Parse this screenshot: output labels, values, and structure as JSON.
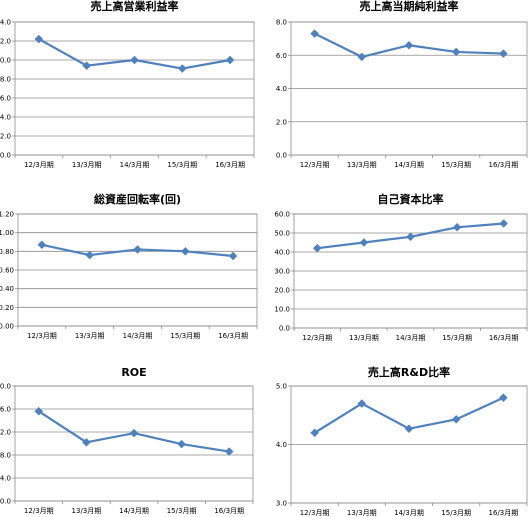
{
  "chart_data": [
    {
      "type": "line",
      "title": "売上高営業利益率",
      "categories": [
        "12/3月期",
        "13/3月期",
        "14/3月期",
        "15/3月期",
        "16/3月期"
      ],
      "series": [
        {
          "values": [
            12.2,
            9.4,
            10.0,
            9.1,
            10.0
          ]
        }
      ],
      "ylim": [
        0,
        14
      ],
      "yticks": [
        0,
        2,
        4,
        6,
        8,
        10,
        12,
        14
      ],
      "ytick_labels": [
        "0.0",
        "2.0",
        "4.0",
        "6.0",
        "8.0",
        "10.0",
        "12.0",
        "14.0"
      ],
      "grid": true,
      "color": "#4f81bd"
    },
    {
      "type": "line",
      "title": "売上高当期純利益率",
      "categories": [
        "12/3月期",
        "13/3月期",
        "14/3月期",
        "15/3月期",
        "16/3月期"
      ],
      "series": [
        {
          "values": [
            7.3,
            5.9,
            6.6,
            6.2,
            6.1
          ]
        }
      ],
      "ylim": [
        0,
        8
      ],
      "yticks": [
        0,
        2,
        4,
        6,
        8
      ],
      "ytick_labels": [
        "0.0",
        "2.0",
        "4.0",
        "6.0",
        "8.0"
      ],
      "grid": true,
      "color": "#4f81bd"
    },
    {
      "type": "line",
      "title": "総資産回転率(回)",
      "categories": [
        "12/3月期",
        "13/3月期",
        "14/3月期",
        "15/3月期",
        "16/3月期"
      ],
      "series": [
        {
          "values": [
            0.87,
            0.76,
            0.82,
            0.8,
            0.75
          ]
        }
      ],
      "ylim": [
        0,
        1.2
      ],
      "yticks": [
        0,
        0.2,
        0.4,
        0.6,
        0.8,
        1.0,
        1.2
      ],
      "ytick_labels": [
        "0.00",
        "0.20",
        "0.40",
        "0.60",
        "0.80",
        "1.00",
        "1.20"
      ],
      "grid": true,
      "color": "#4f81bd"
    },
    {
      "type": "line",
      "title": "自己資本比率",
      "categories": [
        "12/3月期",
        "13/3月期",
        "14/3月期",
        "15/3月期",
        "16/3月期"
      ],
      "series": [
        {
          "values": [
            42.0,
            45.0,
            48.0,
            53.0,
            55.0
          ]
        }
      ],
      "ylim": [
        0,
        60
      ],
      "yticks": [
        0,
        10,
        20,
        30,
        40,
        50,
        60
      ],
      "ytick_labels": [
        "0.0",
        "10.0",
        "20.0",
        "30.0",
        "40.0",
        "50.0",
        "60.0"
      ],
      "grid": true,
      "color": "#4f81bd"
    },
    {
      "type": "line",
      "title": "ROE",
      "categories": [
        "12/3月期",
        "13/3月期",
        "14/3月期",
        "15/3月期",
        "16/3月期"
      ],
      "series": [
        {
          "values": [
            15.6,
            10.2,
            11.8,
            9.9,
            8.6
          ]
        }
      ],
      "ylim": [
        0,
        20
      ],
      "yticks": [
        0,
        4,
        8,
        12,
        16,
        20
      ],
      "ytick_labels": [
        "0.0",
        "4.0",
        "8.0",
        "12.0",
        "16.0",
        "20.0"
      ],
      "grid": true,
      "color": "#4f81bd"
    },
    {
      "type": "line",
      "title": "売上高R&D比率",
      "categories": [
        "12/3月期",
        "13/3月期",
        "14/3月期",
        "15/3月期",
        "16/3月期"
      ],
      "series": [
        {
          "values": [
            4.2,
            4.7,
            4.27,
            4.43,
            4.8
          ]
        }
      ],
      "ylim": [
        3,
        5
      ],
      "yticks": [
        3,
        4,
        5
      ],
      "ytick_labels": [
        "3.0",
        "4.0",
        "5.0"
      ],
      "grid": true,
      "color": "#4f81bd"
    }
  ]
}
